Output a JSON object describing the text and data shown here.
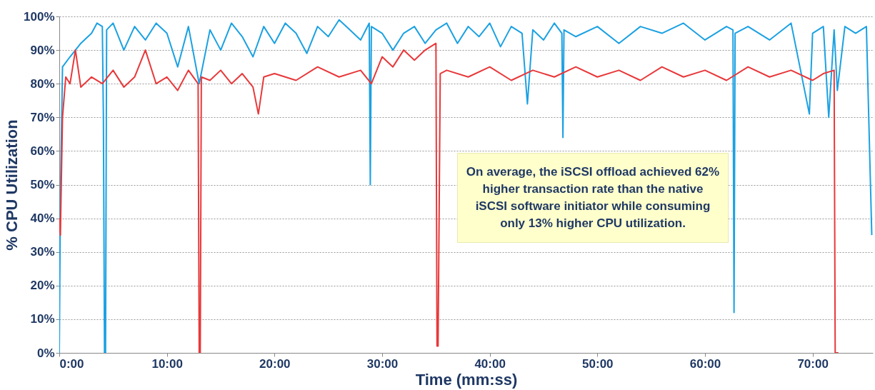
{
  "chart_data": {
    "type": "line",
    "xlabel": "Time (mm:ss)",
    "ylabel": "% CPU Utilization",
    "xlim": [
      0,
      75.6
    ],
    "ylim": [
      0,
      100
    ],
    "xticks": [
      {
        "value": 0,
        "label": "0:00"
      },
      {
        "value": 10,
        "label": "10:00"
      },
      {
        "value": 20,
        "label": "20:00"
      },
      {
        "value": 30,
        "label": "30:00"
      },
      {
        "value": 40,
        "label": "40:00"
      },
      {
        "value": 50,
        "label": "50:00"
      },
      {
        "value": 60,
        "label": "60:00"
      },
      {
        "value": 70,
        "label": "70:00"
      }
    ],
    "yticks": [
      {
        "value": 0,
        "label": "0%"
      },
      {
        "value": 10,
        "label": "10%"
      },
      {
        "value": 20,
        "label": "20%"
      },
      {
        "value": 30,
        "label": "30%"
      },
      {
        "value": 40,
        "label": "40%"
      },
      {
        "value": 50,
        "label": "50%"
      },
      {
        "value": 60,
        "label": "60%"
      },
      {
        "value": 70,
        "label": "70%"
      },
      {
        "value": 80,
        "label": "80%"
      },
      {
        "value": 90,
        "label": "90%"
      },
      {
        "value": 100,
        "label": "100%"
      }
    ],
    "grid": "y",
    "annotations": [
      "On average, the iSCSI offload achieved 62% higher transaction rate than the native iSCSI software initiator while consuming only 13% higher CPU utilization."
    ],
    "series": [
      {
        "color": "#e8383a",
        "x": [
          0,
          0.1,
          0.3,
          0.6,
          1,
          1.5,
          2,
          3,
          4,
          5,
          6,
          7,
          8,
          9,
          10,
          11,
          12,
          12.9,
          13,
          13.1,
          13.2,
          14,
          15,
          16,
          17,
          18,
          18.5,
          19,
          20,
          22,
          24,
          26,
          28,
          29,
          30,
          31,
          32,
          33,
          34,
          35,
          35.1,
          35.2,
          35.4,
          36,
          38,
          40,
          42,
          44,
          46,
          48,
          50,
          52,
          54,
          56,
          58,
          60,
          62,
          64,
          66,
          68,
          70,
          71,
          72,
          72.1,
          72.4
        ],
        "values": [
          40,
          35,
          70,
          82,
          80,
          90,
          79,
          82,
          80,
          84,
          79,
          82,
          90,
          80,
          82,
          78,
          84,
          80,
          0,
          0,
          82,
          81,
          84,
          80,
          83,
          79,
          71,
          82,
          83,
          81,
          85,
          82,
          84,
          80,
          88,
          85,
          90,
          87,
          90,
          92,
          2,
          2,
          83,
          84,
          82,
          85,
          81,
          84,
          82,
          85,
          82,
          84,
          81,
          85,
          82,
          84,
          81,
          85,
          82,
          84,
          81,
          83,
          84,
          0,
          0
        ]
      },
      {
        "color": "#1ba1e2",
        "x": [
          0,
          0.1,
          0.3,
          1,
          2,
          3,
          3.5,
          4,
          4.1,
          4.2,
          4.3,
          4.4,
          5,
          6,
          7,
          8,
          9,
          10,
          11,
          12,
          13,
          14,
          15,
          16,
          17,
          18,
          19,
          20,
          21,
          22,
          23,
          24,
          25,
          26,
          27,
          28,
          28.8,
          28.9,
          29,
          30,
          31,
          32,
          33,
          34,
          35,
          36,
          37,
          38,
          39,
          40,
          41,
          42,
          43,
          43.5,
          44,
          45,
          46,
          46.7,
          46.8,
          46.9,
          48,
          50,
          52,
          54,
          56,
          58,
          60,
          62,
          62.6,
          62.7,
          62.8,
          64,
          66,
          68,
          69.7,
          70,
          71,
          71.5,
          72,
          72.3,
          73,
          74,
          75,
          75.5
        ],
        "values": [
          0,
          45,
          85,
          88,
          92,
          95,
          98,
          97,
          70,
          0,
          0,
          96,
          98,
          90,
          97,
          93,
          98,
          95,
          85,
          97,
          80,
          96,
          90,
          98,
          94,
          88,
          97,
          92,
          98,
          95,
          89,
          97,
          94,
          99,
          96,
          93,
          98,
          50,
          97,
          95,
          90,
          95,
          97,
          92,
          96,
          98,
          92,
          97,
          94,
          98,
          91,
          97,
          95,
          74,
          96,
          93,
          98,
          95,
          64,
          96,
          94,
          97,
          92,
          97,
          95,
          98,
          93,
          97,
          96,
          12,
          95,
          97,
          93,
          98,
          71,
          95,
          97,
          70,
          96,
          78,
          97,
          95,
          97,
          35
        ]
      }
    ]
  }
}
